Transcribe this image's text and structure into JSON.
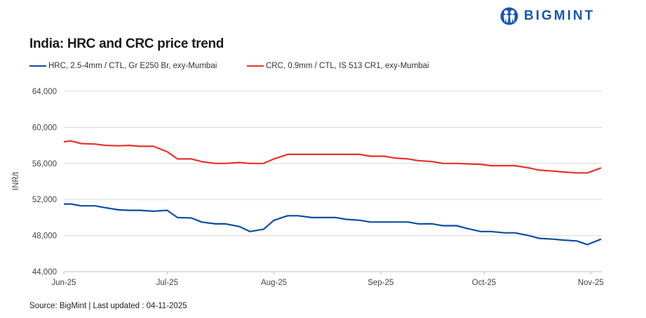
{
  "brand": {
    "name": "BIGMINT",
    "color": "#1a56b0"
  },
  "chart_data": {
    "type": "line",
    "title": "India: HRC and CRC price trend",
    "ylabel": "INR/t",
    "xlabel": "",
    "ylim": [
      44000,
      64000
    ],
    "yticks": [
      44000,
      48000,
      52000,
      56000,
      60000,
      64000
    ],
    "ytick_labels": [
      "44,000",
      "48,000",
      "52,000",
      "56,000",
      "60,000",
      "64,000"
    ],
    "xticks": [
      "2025-06-01",
      "2025-07-01",
      "2025-08-01",
      "2025-09-01",
      "2025-10-01",
      "2025-11-01"
    ],
    "xtick_labels": [
      "Jun-25",
      "Jul-25",
      "Aug-25",
      "Sep-25",
      "Oct-25",
      "Nov-25"
    ],
    "xlim": [
      "2025-06-01",
      "2025-11-04"
    ],
    "grid": "horizontal",
    "legend": "top-left",
    "x": [
      "2025-06-01",
      "2025-06-03",
      "2025-06-06",
      "2025-06-10",
      "2025-06-13",
      "2025-06-17",
      "2025-06-20",
      "2025-06-23",
      "2025-06-27",
      "2025-07-01",
      "2025-07-04",
      "2025-07-08",
      "2025-07-11",
      "2025-07-15",
      "2025-07-18",
      "2025-07-22",
      "2025-07-25",
      "2025-07-29",
      "2025-08-01",
      "2025-08-05",
      "2025-08-08",
      "2025-08-12",
      "2025-08-15",
      "2025-08-19",
      "2025-08-22",
      "2025-08-26",
      "2025-08-29",
      "2025-09-02",
      "2025-09-05",
      "2025-09-09",
      "2025-09-12",
      "2025-09-16",
      "2025-09-19",
      "2025-09-23",
      "2025-09-26",
      "2025-09-30",
      "2025-10-03",
      "2025-10-07",
      "2025-10-10",
      "2025-10-14",
      "2025-10-17",
      "2025-10-21",
      "2025-10-24",
      "2025-10-28",
      "2025-10-31",
      "2025-11-04"
    ],
    "series": [
      {
        "name": "HRC, 2.5-4mm / CTL, Gr E250 Br, exy-Mumbai",
        "color": "#0b4ea2",
        "values": [
          51500,
          51500,
          51300,
          51300,
          51100,
          50850,
          50800,
          50800,
          50700,
          50800,
          50000,
          49950,
          49500,
          49300,
          49300,
          49000,
          48450,
          48700,
          49700,
          50200,
          50200,
          50000,
          50000,
          50000,
          49800,
          49700,
          49500,
          49500,
          49500,
          49500,
          49300,
          49300,
          49100,
          49100,
          48800,
          48450,
          48450,
          48300,
          48300,
          48000,
          47700,
          47600,
          47500,
          47400,
          47000,
          47600
        ]
      },
      {
        "name": "CRC, 0.9mm / CTL, IS 513 CR1, exy-Mumbai",
        "color": "#e8322d",
        "values": [
          58400,
          58500,
          58200,
          58150,
          58000,
          57950,
          58000,
          57900,
          57900,
          57300,
          56500,
          56500,
          56200,
          56000,
          56000,
          56100,
          56000,
          56000,
          56500,
          57000,
          57000,
          57000,
          57000,
          57000,
          57000,
          57000,
          56800,
          56800,
          56600,
          56500,
          56300,
          56200,
          56000,
          56000,
          55950,
          55900,
          55750,
          55750,
          55750,
          55500,
          55250,
          55150,
          55050,
          54950,
          54950,
          55500
        ]
      }
    ]
  },
  "footer": {
    "source": "Source: BigMint | Last updated : 04-11-2025"
  }
}
